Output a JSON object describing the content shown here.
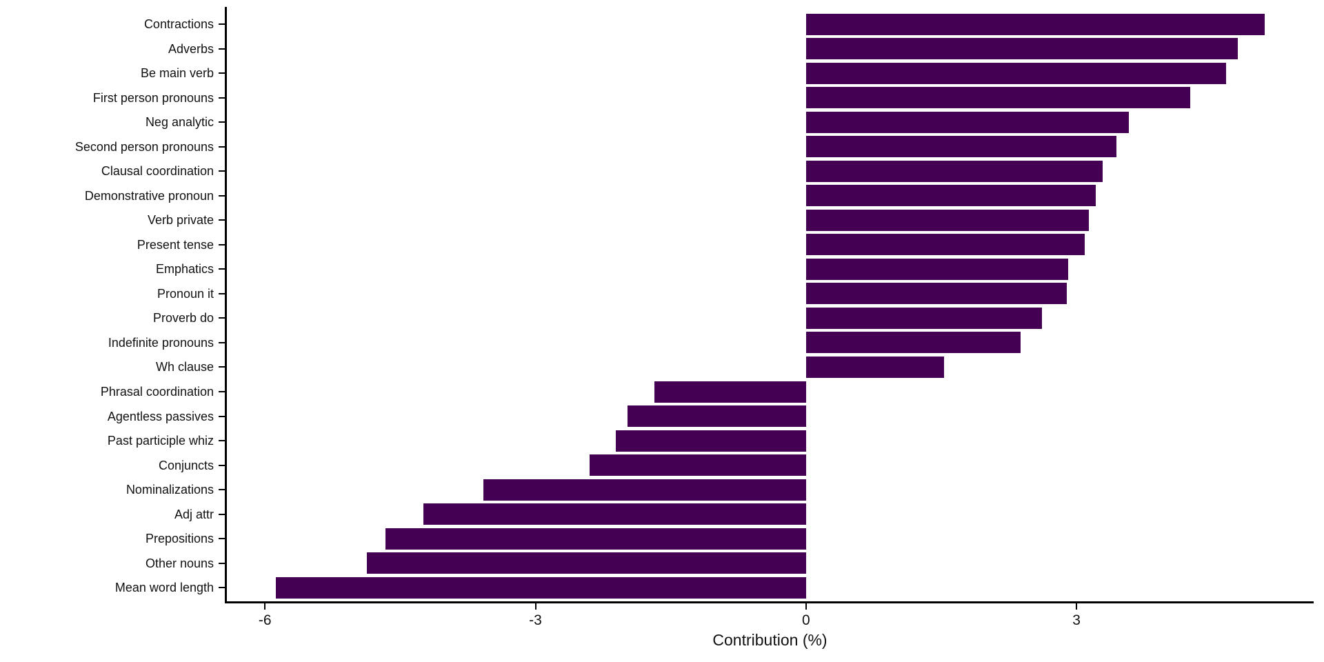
{
  "figure": {
    "background_color": "#ffffff"
  },
  "chart_data": {
    "type": "bar",
    "orientation": "horizontal",
    "title": "",
    "xlabel": "Contribution (%)",
    "ylabel": "",
    "categories": [
      "Contractions",
      "Adverbs",
      "Be main verb",
      "First person pronouns",
      "Neg analytic",
      "Second person pronouns",
      "Clausal coordination",
      "Demonstrative pronoun",
      "Verb private",
      "Present tense",
      "Emphatics",
      "Pronoun it",
      "Proverb do",
      "Indefinite pronouns",
      "Wh clause",
      "Phrasal coordination",
      "Agentless passives",
      "Past participle whiz",
      "Conjuncts",
      "Nominalizations",
      "Adj attr",
      "Prepositions",
      "Other nouns",
      "Mean word length"
    ],
    "values": [
      5.09,
      4.79,
      4.66,
      4.26,
      3.58,
      3.44,
      3.29,
      3.21,
      3.14,
      3.09,
      2.91,
      2.89,
      2.62,
      2.38,
      1.53,
      -1.68,
      -1.98,
      -2.11,
      -2.4,
      -3.58,
      -4.24,
      -4.66,
      -4.87,
      -5.88
    ],
    "x_ticks": [
      -6,
      -3,
      0,
      3
    ],
    "x_tick_labels": [
      "-6",
      "-3",
      "0",
      "3"
    ],
    "xlim": [
      -6.43,
      5.63
    ],
    "bar_color": "#440154",
    "axis_color": "#000000",
    "grid": "off",
    "legend": "none"
  }
}
